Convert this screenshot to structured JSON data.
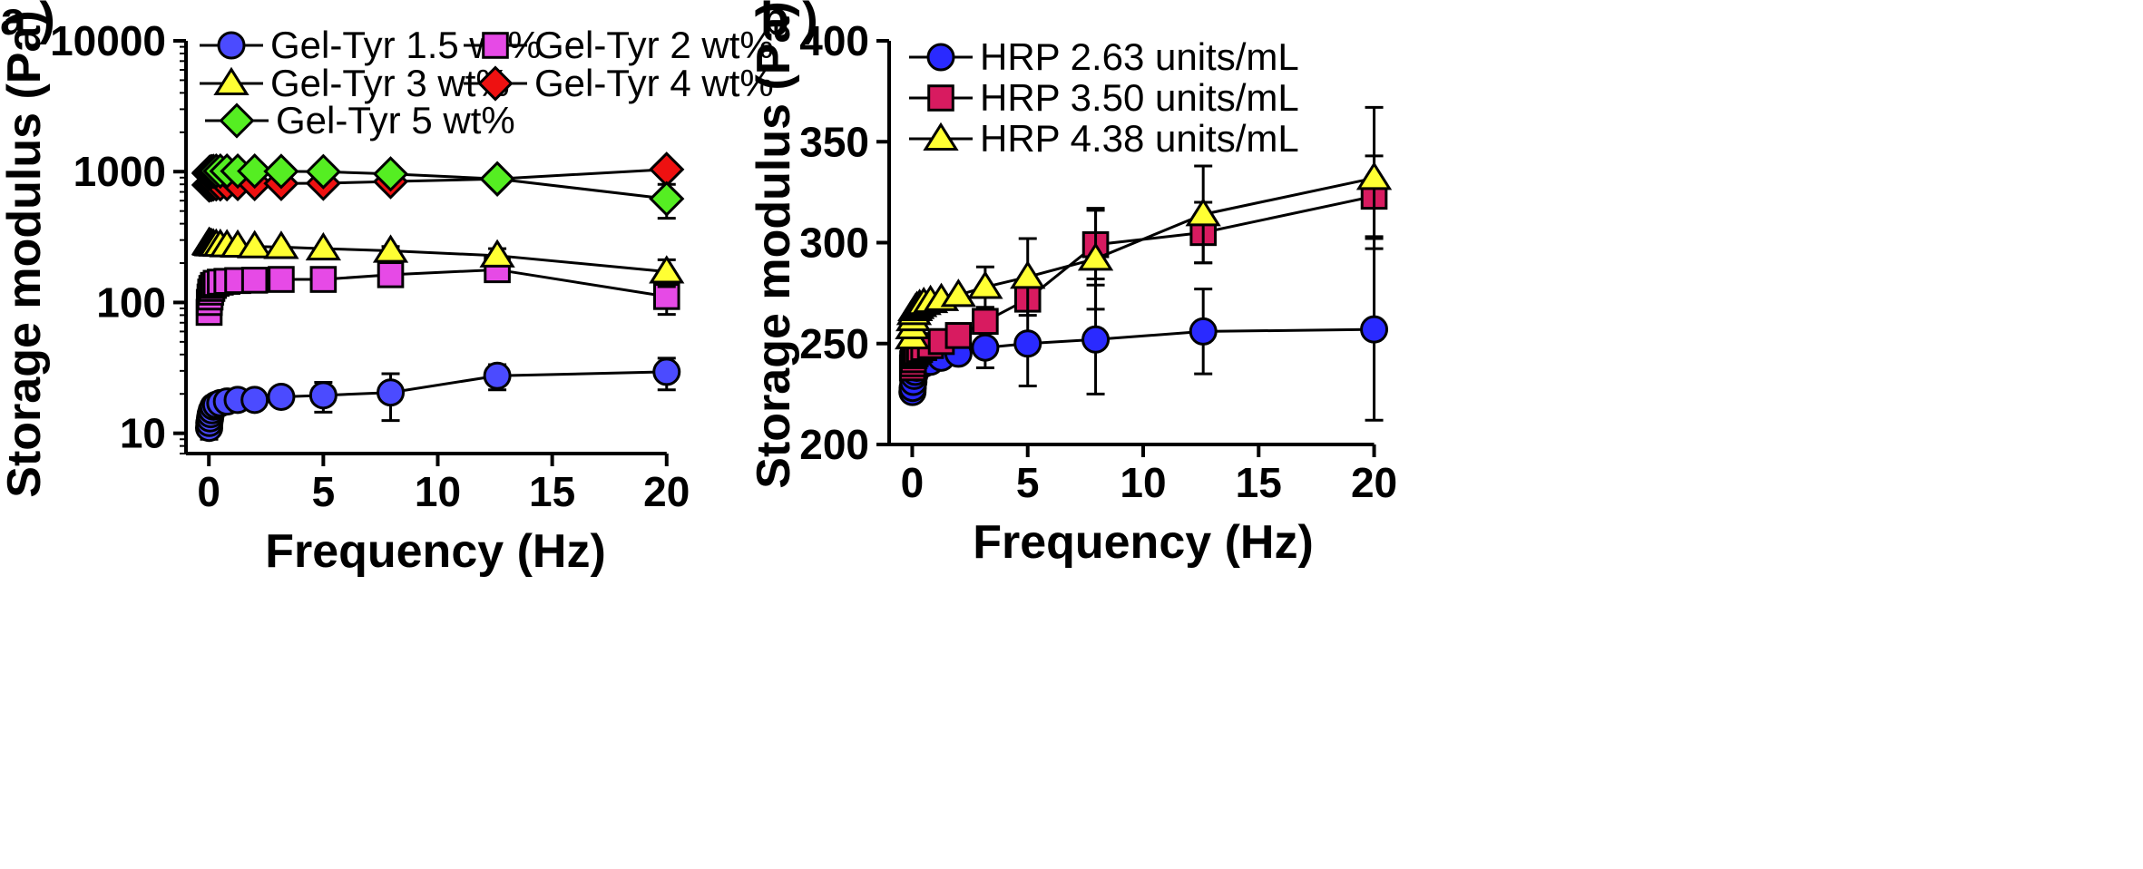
{
  "colors": {
    "blue": "#4b4bff",
    "magenta": "#e64ae6",
    "yellow": "#ffff33",
    "red": "#ee1111",
    "green": "#55ee22",
    "crimson": "#d81b60",
    "brightblue": "#2a2aff",
    "axis": "#000000"
  },
  "chart_data": [
    {
      "panel_label": "a )",
      "type": "scatter",
      "xlabel": "Frequency (Hz)",
      "ylabel": "Storage modulus (Pa)",
      "yscale": "log",
      "xlim": [
        -1,
        21
      ],
      "ylim": [
        7,
        10000
      ],
      "xticks": [
        0,
        5,
        10,
        15,
        20
      ],
      "yticks": [
        10,
        100,
        1000,
        10000
      ],
      "grid": false,
      "legend_position": "top",
      "series": [
        {
          "name": "Gel-Tyr 1.5 wt%",
          "marker": "circle",
          "color": "blue",
          "x": [
            0.01,
            0.02,
            0.05,
            0.08,
            0.13,
            0.2,
            0.32,
            0.5,
            0.79,
            1.26,
            2.0,
            3.16,
            5.0,
            7.94,
            12.6,
            20.0
          ],
          "y": [
            11,
            12,
            13,
            14,
            15,
            16,
            16.5,
            17,
            17.5,
            18,
            18,
            19,
            19.5,
            20.5,
            27.5,
            29.5
          ],
          "err": [
            2,
            2,
            2,
            2,
            2,
            2,
            2,
            2,
            2,
            2,
            2,
            2,
            5,
            8,
            6,
            8
          ]
        },
        {
          "name": "Gel-Tyr 2 wt%",
          "marker": "square",
          "color": "magenta",
          "x": [
            0.01,
            0.02,
            0.05,
            0.08,
            0.13,
            0.2,
            0.32,
            0.5,
            0.79,
            1.26,
            2.0,
            3.16,
            5.0,
            7.94,
            12.6,
            20.0
          ],
          "y": [
            84,
            100,
            110,
            120,
            128,
            135,
            140,
            143,
            145,
            147,
            148,
            150,
            150,
            163,
            178,
            111
          ],
          "err": [
            0,
            0,
            0,
            0,
            0,
            0,
            0,
            0,
            0,
            0,
            0,
            0,
            0,
            12,
            15,
            30
          ]
        },
        {
          "name": "Gel-Tyr 3 wt%",
          "marker": "triangle",
          "color": "yellow",
          "x": [
            0.01,
            0.02,
            0.05,
            0.08,
            0.13,
            0.2,
            0.32,
            0.5,
            0.79,
            1.26,
            2.0,
            3.16,
            5.0,
            7.94,
            12.6,
            20.0
          ],
          "y": [
            285,
            283,
            281,
            280,
            278,
            277,
            276,
            275,
            273,
            271,
            268,
            265,
            258,
            248,
            228,
            172
          ],
          "err": [
            0,
            0,
            0,
            0,
            0,
            0,
            0,
            0,
            0,
            0,
            0,
            0,
            0,
            20,
            30,
            40
          ]
        },
        {
          "name": "Gel-Tyr 4 wt%",
          "marker": "diamond",
          "color": "red",
          "x": [
            0.01,
            0.02,
            0.05,
            0.08,
            0.13,
            0.2,
            0.32,
            0.5,
            0.79,
            1.26,
            2.0,
            3.16,
            5.0,
            7.94,
            12.6,
            20.0
          ],
          "y": [
            790,
            795,
            800,
            800,
            800,
            805,
            805,
            805,
            808,
            810,
            810,
            812,
            815,
            840,
            880,
            1040
          ],
          "err": [
            0,
            0,
            0,
            0,
            0,
            0,
            0,
            0,
            0,
            0,
            0,
            0,
            0,
            0,
            0,
            0
          ]
        },
        {
          "name": "Gel-Tyr 5 wt%",
          "marker": "diamond",
          "color": "green",
          "x": [
            0.01,
            0.02,
            0.05,
            0.08,
            0.13,
            0.2,
            0.32,
            0.5,
            0.79,
            1.26,
            2.0,
            3.16,
            5.0,
            7.94,
            12.6,
            20.0
          ],
          "y": [
            970,
            985,
            990,
            995,
            1000,
            1005,
            1010,
            1010,
            1010,
            1010,
            1010,
            1005,
            1000,
            960,
            880,
            620
          ],
          "err": [
            0,
            0,
            0,
            0,
            0,
            0,
            0,
            0,
            0,
            0,
            0,
            0,
            0,
            0,
            0,
            180
          ]
        }
      ]
    },
    {
      "panel_label": "b )",
      "type": "scatter",
      "xlabel": "Frequency (Hz)",
      "ylabel": "Storage modulus (Pa)",
      "yscale": "linear",
      "xlim": [
        -1,
        21
      ],
      "ylim": [
        200,
        400
      ],
      "xticks": [
        0,
        5,
        10,
        15,
        20
      ],
      "yticks": [
        200,
        250,
        300,
        350,
        400
      ],
      "grid": false,
      "legend_position": "top-left",
      "series": [
        {
          "name": "HRP 2.63 units/mL",
          "marker": "circle",
          "color": "brightblue",
          "x": [
            0.01,
            0.02,
            0.05,
            0.08,
            0.13,
            0.2,
            0.32,
            0.5,
            0.79,
            1.26,
            2.0,
            3.16,
            5.0,
            7.94,
            12.6,
            20.0
          ],
          "y": [
            226,
            228,
            231,
            234,
            236,
            238,
            239,
            240,
            241,
            243,
            245,
            248,
            250,
            252,
            256,
            257
          ],
          "err": [
            0,
            0,
            0,
            0,
            0,
            0,
            0,
            0,
            0,
            0,
            0,
            10,
            21,
            27,
            21,
            45
          ]
        },
        {
          "name": "HRP 3.50 units/mL",
          "marker": "square",
          "color": "crimson",
          "x": [
            0.01,
            0.02,
            0.05,
            0.08,
            0.13,
            0.2,
            0.32,
            0.5,
            0.79,
            1.26,
            2.0,
            3.16,
            5.0,
            7.94,
            12.6,
            20.0
          ],
          "y": [
            238,
            240,
            242,
            244,
            245,
            246,
            247,
            248,
            249,
            251,
            254,
            261,
            272,
            299,
            305,
            323
          ],
          "err": [
            0,
            0,
            0,
            0,
            0,
            0,
            0,
            0,
            0,
            0,
            0,
            0,
            0,
            17,
            15,
            20
          ]
        },
        {
          "name": "HRP 4.38 units/mL",
          "marker": "triangle",
          "color": "yellow",
          "x": [
            0.01,
            0.02,
            0.05,
            0.08,
            0.13,
            0.2,
            0.32,
            0.5,
            0.79,
            1.26,
            2.0,
            3.16,
            5.0,
            7.94,
            12.6,
            20.0
          ],
          "y": [
            253,
            258,
            262,
            265,
            267,
            268,
            269,
            270,
            271,
            272,
            274,
            278,
            283,
            292,
            314,
            332
          ],
          "err": [
            0,
            0,
            0,
            0,
            0,
            0,
            0,
            0,
            0,
            0,
            0,
            10,
            19,
            25,
            24,
            35
          ]
        }
      ]
    }
  ]
}
